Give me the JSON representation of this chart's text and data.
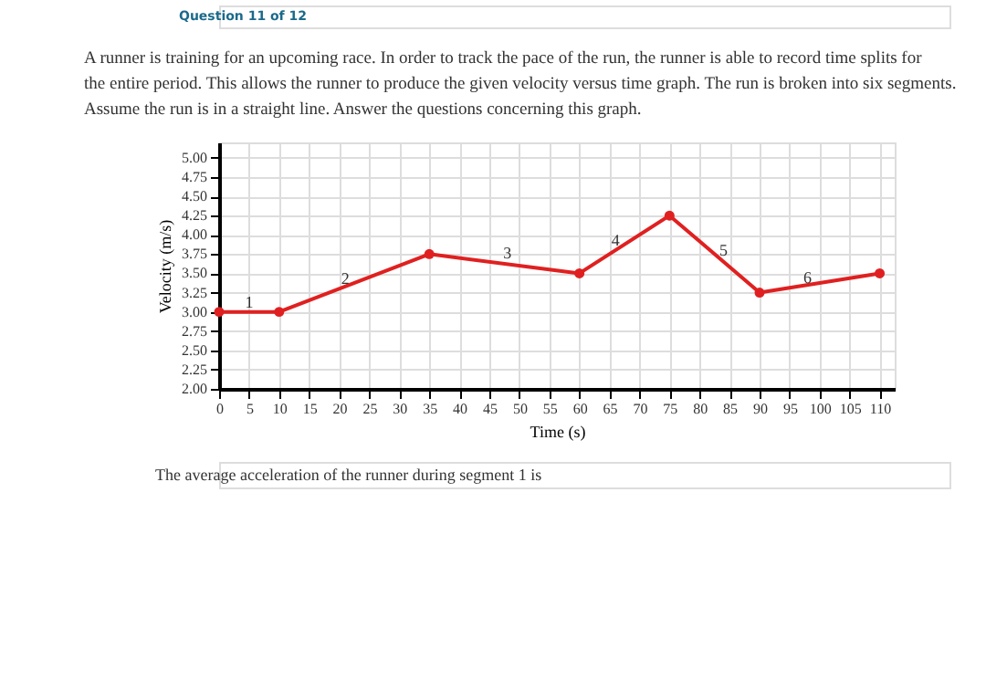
{
  "chart_data": {
    "type": "line",
    "title": "A runner is training for an upcoming race. In order to track the pace of the run, the runner is able to record time splits for the entire period. This allows the runner to produce the given velocity versus time graph. The run is broken into six segments. Assume the run is in a straight line. Answer the questions concerning this graph.",
    "xlabel": "Time (s)",
    "ylabel": "Velocity (m/s)",
    "x": [
      0,
      10,
      35,
      60,
      75,
      90,
      110
    ],
    "series": [
      {
        "color": "#e02020",
        "values": [
          3.0,
          3.0,
          3.75,
          3.5,
          4.25,
          3.25,
          3.5
        ]
      }
    ],
    "xlim": [
      0,
      112.5
    ],
    "ylim": [
      2,
      5.2
    ],
    "xticks": [
      0,
      5,
      10,
      15,
      20,
      25,
      30,
      35,
      40,
      45,
      50,
      55,
      60,
      65,
      70,
      75,
      80,
      85,
      90,
      95,
      100,
      105,
      110
    ],
    "yticks": [
      {
        "value": 2,
        "label": "2.00"
      },
      {
        "value": 2.25,
        "label": "2.25"
      },
      {
        "value": 2.5,
        "label": "2.50"
      },
      {
        "value": 2.75,
        "label": "2.75"
      },
      {
        "value": 3,
        "label": "3.00"
      },
      {
        "value": 3.25,
        "label": "3.25"
      },
      {
        "value": 3.5,
        "label": "3.50"
      },
      {
        "value": 3.75,
        "label": "3.75"
      },
      {
        "value": 4,
        "label": "4.00"
      },
      {
        "value": 4.25,
        "label": "4.25"
      },
      {
        "value": 4.5,
        "label": "4.50"
      },
      {
        "value": 4.75,
        "label": "4.75"
      },
      {
        "value": 5,
        "label": "5.00"
      }
    ],
    "grid": true,
    "marker": "circle",
    "line_style": "solid",
    "annotations": [
      "Question 11 of 12",
      "The average acceleration of the runner during segment 1 is",
      {
        "text": "1",
        "x": 5,
        "y": 3.13
      },
      {
        "text": "2",
        "x": 21,
        "y": 3.44
      },
      {
        "text": "3",
        "x": 48,
        "y": 3.77
      },
      {
        "text": "4",
        "x": 66,
        "y": 3.93
      },
      {
        "text": "5",
        "x": 84,
        "y": 3.8
      },
      {
        "text": "6",
        "x": 98,
        "y": 3.45
      }
    ]
  }
}
